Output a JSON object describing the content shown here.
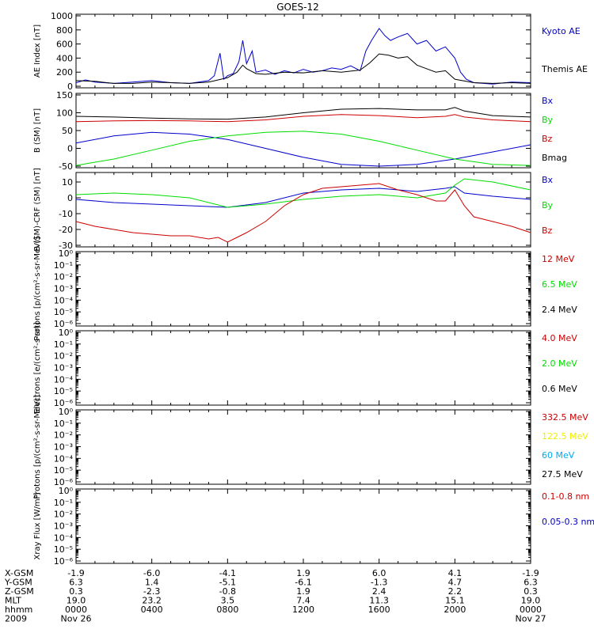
{
  "title": "GOES-12",
  "colors": {
    "red": "#cc0000",
    "green": "#00dd00",
    "blue": "#0000cc",
    "black": "#000000",
    "yellow": "#eeee00",
    "cyan": "#00aaee"
  },
  "x_axis": {
    "ticks": [
      "0000",
      "0400",
      "0800",
      "1200",
      "1600",
      "2000",
      "0000"
    ],
    "row_labels": [
      "X-GSM",
      "Y-GSM",
      "Z-GSM",
      "MLT",
      "hhmm",
      "2009"
    ],
    "rows": [
      [
        "-1.9",
        "-6.0",
        "-4.1",
        "1.9",
        "6.0",
        "4.1",
        "-1.9"
      ],
      [
        "6.3",
        "1.4",
        "-5.1",
        "-6.1",
        "-1.3",
        "4.7",
        "6.3"
      ],
      [
        "0.3",
        "-2.3",
        "-0.8",
        "1.9",
        "2.4",
        "2.2",
        "0.3"
      ],
      [
        "19.0",
        "23.2",
        "3.5",
        "7.4",
        "11.3",
        "15.1",
        "19.0"
      ],
      [
        "0000",
        "0400",
        "0800",
        "1200",
        "1600",
        "2000",
        "0000"
      ],
      [
        "Nov 26",
        "",
        "",
        "",
        "",
        "",
        "Nov 27"
      ]
    ]
  },
  "chart_data": [
    {
      "type": "line",
      "ylabel": "AE Index [nT]",
      "ylim": [
        0,
        1000
      ],
      "yticks": [
        "0",
        "200",
        "400",
        "600",
        "800",
        "1000"
      ],
      "legend": [
        {
          "label": "Kyoto AE",
          "color": "#0000cc"
        },
        {
          "label": "Themis AE",
          "color": "#000000"
        }
      ],
      "series": [
        {
          "name": "Kyoto AE",
          "color": "#0000cc",
          "x": [
            0,
            0.5,
            1,
            2,
            3,
            4,
            5,
            6,
            7,
            7.3,
            7.6,
            7.8,
            8,
            8.3,
            8.6,
            8.8,
            9,
            9.3,
            9.5,
            10,
            10.5,
            11,
            11.5,
            12,
            12.5,
            13,
            13.5,
            14,
            14.5,
            15,
            15.3,
            15.6,
            16,
            16.3,
            16.6,
            17,
            17.5,
            18,
            18.5,
            19,
            19.5,
            20,
            20.3,
            20.6,
            21,
            22,
            23,
            24
          ],
          "y": [
            50,
            90,
            60,
            40,
            60,
            80,
            50,
            40,
            80,
            150,
            470,
            100,
            150,
            180,
            350,
            650,
            320,
            500,
            200,
            230,
            170,
            220,
            190,
            240,
            200,
            220,
            260,
            240,
            290,
            220,
            500,
            650,
            820,
            720,
            650,
            700,
            750,
            600,
            650,
            500,
            560,
            400,
            200,
            100,
            50,
            30,
            60,
            50
          ]
        },
        {
          "name": "Themis AE",
          "color": "#000000",
          "x": [
            0,
            1,
            2,
            3,
            4,
            5,
            6,
            7,
            7.5,
            8,
            8.5,
            8.8,
            9,
            9.5,
            10,
            11,
            12,
            13,
            14,
            15,
            15.5,
            16,
            16.5,
            17,
            17.5,
            18,
            18.5,
            19,
            19.5,
            20,
            21,
            22,
            23,
            24
          ],
          "y": [
            80,
            70,
            40,
            40,
            60,
            50,
            40,
            60,
            90,
            120,
            200,
            300,
            250,
            180,
            170,
            200,
            190,
            220,
            200,
            230,
            330,
            460,
            440,
            400,
            420,
            300,
            250,
            200,
            220,
            100,
            50,
            40,
            50,
            40
          ]
        }
      ]
    },
    {
      "type": "line",
      "ylabel": "B (SM) [nT]",
      "ylim": [
        -50,
        150
      ],
      "yticks": [
        "-50",
        "0",
        "50",
        "100",
        "150"
      ],
      "legend": [
        {
          "label": "Bx",
          "color": "#0000cc"
        },
        {
          "label": "By",
          "color": "#00dd00"
        },
        {
          "label": "Bz",
          "color": "#cc0000"
        },
        {
          "label": "Bmag",
          "color": "#000000"
        }
      ],
      "series": [
        {
          "name": "Bx",
          "color": "#0000cc",
          "x": [
            0,
            2,
            4,
            6,
            8,
            10,
            12,
            14,
            16,
            18,
            20,
            22,
            24
          ],
          "y": [
            15,
            35,
            45,
            40,
            25,
            0,
            -25,
            -45,
            -50,
            -45,
            -30,
            -10,
            10
          ]
        },
        {
          "name": "By",
          "color": "#00dd00",
          "x": [
            0,
            2,
            4,
            6,
            8,
            10,
            12,
            14,
            16,
            18,
            20,
            22,
            24
          ],
          "y": [
            -48,
            -30,
            -5,
            20,
            35,
            45,
            48,
            40,
            20,
            -5,
            -30,
            -45,
            -48
          ]
        },
        {
          "name": "Bz",
          "color": "#cc0000",
          "x": [
            0,
            2,
            4,
            6,
            8,
            10,
            12,
            14,
            16,
            18,
            19.5,
            20,
            20.5,
            22,
            24
          ],
          "y": [
            75,
            77,
            78,
            77,
            75,
            80,
            90,
            95,
            92,
            86,
            90,
            95,
            88,
            80,
            75
          ]
        },
        {
          "name": "Bmag",
          "color": "#000000",
          "x": [
            0,
            2,
            4,
            6,
            8,
            10,
            12,
            14,
            16,
            18,
            19.5,
            20,
            20.5,
            22,
            24
          ],
          "y": [
            90,
            88,
            85,
            83,
            82,
            88,
            100,
            110,
            112,
            108,
            108,
            115,
            105,
            92,
            88
          ]
        }
      ]
    },
    {
      "type": "line",
      "ylabel": "B (SM)-CRF (SM) [nT]",
      "ylim": [
        -30,
        15
      ],
      "yticks": [
        "-30",
        "-20",
        "-10",
        "0",
        "10"
      ],
      "legend": [
        {
          "label": "Bx",
          "color": "#0000cc"
        },
        {
          "label": "By",
          "color": "#00dd00"
        },
        {
          "label": "Bz",
          "color": "#cc0000"
        }
      ],
      "series": [
        {
          "name": "Bx",
          "color": "#0000cc",
          "x": [
            0,
            2,
            4,
            6,
            8,
            10,
            12,
            14,
            16,
            18,
            19.5,
            20,
            20.5,
            22,
            24
          ],
          "y": [
            -1,
            -3,
            -4,
            -5,
            -6,
            -3,
            3,
            5,
            6,
            4,
            6,
            7,
            3,
            1,
            -1
          ]
        },
        {
          "name": "By",
          "color": "#00dd00",
          "x": [
            0,
            2,
            4,
            6,
            8,
            10,
            12,
            14,
            16,
            18,
            19.5,
            20,
            20.5,
            22,
            24
          ],
          "y": [
            2,
            3,
            2,
            0,
            -6,
            -4,
            -1,
            1,
            2,
            0,
            3,
            8,
            12,
            10,
            5
          ]
        },
        {
          "name": "Bz",
          "color": "#cc0000",
          "x": [
            0,
            1,
            2,
            3,
            4,
            5,
            6,
            7,
            7.5,
            8,
            8.5,
            9,
            10,
            11,
            12,
            13,
            14,
            15,
            16,
            17,
            18,
            19,
            19.5,
            20,
            20.5,
            21,
            22,
            23,
            24
          ],
          "y": [
            -15,
            -18,
            -20,
            -22,
            -23,
            -24,
            -24,
            -26,
            -25,
            -28,
            -25,
            -22,
            -15,
            -5,
            2,
            6,
            7,
            8,
            9,
            5,
            2,
            -2,
            -2,
            5,
            -5,
            -12,
            -15,
            -18,
            -22
          ]
        }
      ]
    },
    {
      "type": "line",
      "ylabel": "Protons [p/(cm²-s-sr-MeV)]",
      "yscale": "log",
      "yticks": [
        "10⁻⁶",
        "10⁻⁵",
        "10⁻⁴",
        "10⁻³",
        "10⁻²",
        "10⁻¹",
        "10⁰"
      ],
      "legend": [
        {
          "label": "12 MeV",
          "color": "#cc0000"
        },
        {
          "label": "6.5 MeV",
          "color": "#00dd00"
        },
        {
          "label": "2.4 MeV",
          "color": "#000000"
        }
      ],
      "series": []
    },
    {
      "type": "line",
      "ylabel": "Electrons [e/(cm²-s-sr)]",
      "yscale": "log",
      "yticks": [
        "10⁻⁶",
        "10⁻⁵",
        "10⁻⁴",
        "10⁻³",
        "10⁻²",
        "10⁻¹",
        "10⁰"
      ],
      "legend": [
        {
          "label": "4.0 MeV",
          "color": "#cc0000"
        },
        {
          "label": "2.0 MeV",
          "color": "#00dd00"
        },
        {
          "label": "0.6 MeV",
          "color": "#000000"
        }
      ],
      "series": []
    },
    {
      "type": "line",
      "ylabel": "Protons [p/(cm²-s-sr-MeV)]",
      "yscale": "log",
      "yticks": [
        "10⁻⁶",
        "10⁻⁵",
        "10⁻⁴",
        "10⁻³",
        "10⁻²",
        "10⁻¹",
        "10⁰"
      ],
      "legend": [
        {
          "label": "332.5 MeV",
          "color": "#cc0000"
        },
        {
          "label": "122.5 MeV",
          "color": "#eeee00"
        },
        {
          "label": "60 MeV",
          "color": "#00aaee"
        },
        {
          "label": "27.5 MeV",
          "color": "#000000"
        }
      ],
      "series": []
    },
    {
      "type": "line",
      "ylabel": "Xray Flux [W/m²]",
      "yscale": "log",
      "yticks": [
        "10⁻⁶",
        "10⁻⁵",
        "10⁻⁴",
        "10⁻³",
        "10⁻²",
        "10⁻¹",
        "10⁰"
      ],
      "legend": [
        {
          "label": "0.1-0.8 nm",
          "color": "#cc0000"
        },
        {
          "label": "0.05-0.3 nm",
          "color": "#0000cc"
        }
      ],
      "series": []
    }
  ]
}
